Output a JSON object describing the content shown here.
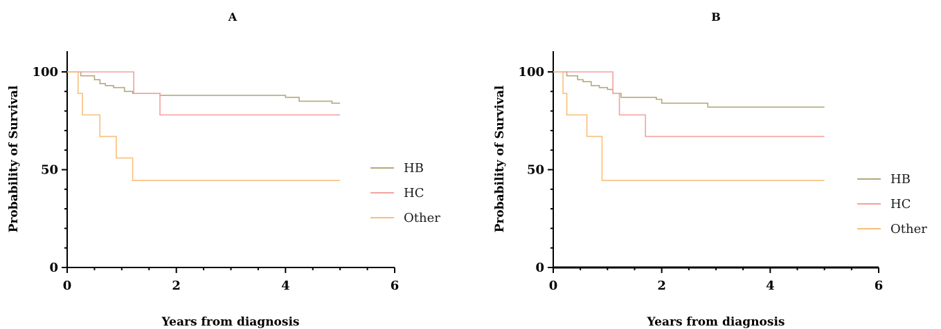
{
  "chart_data": [
    {
      "type": "line",
      "panel_label": "A",
      "xlabel": "Years from diagnosis",
      "ylabel": "Probability of Survival",
      "xlim": [
        0,
        6
      ],
      "ylim": [
        0,
        100
      ],
      "x_ticks": [
        "0",
        "2",
        "4",
        "6"
      ],
      "y_ticks": [
        "0",
        "50",
        "100"
      ],
      "grid": false,
      "legend_position": "right",
      "series": [
        {
          "name": "HB",
          "color": "#b3a97a",
          "step": true,
          "points": [
            [
              0,
              100
            ],
            [
              0.25,
              98
            ],
            [
              0.5,
              96
            ],
            [
              0.6,
              94
            ],
            [
              0.7,
              93
            ],
            [
              0.85,
              92
            ],
            [
              1.05,
              90
            ],
            [
              1.2,
              89
            ],
            [
              1.7,
              88
            ],
            [
              4.0,
              87
            ],
            [
              4.25,
              85
            ],
            [
              4.85,
              84
            ],
            [
              5.0,
              84
            ]
          ]
        },
        {
          "name": "HC",
          "color": "#f4a0a0",
          "step": true,
          "points": [
            [
              0,
              100
            ],
            [
              1.22,
              89
            ],
            [
              1.7,
              78
            ],
            [
              5.0,
              78
            ]
          ]
        },
        {
          "name": "Other",
          "color": "#f8bf7a",
          "step": true,
          "points": [
            [
              0,
              100
            ],
            [
              0.2,
              89
            ],
            [
              0.28,
              78
            ],
            [
              0.6,
              67
            ],
            [
              0.9,
              56
            ],
            [
              1.2,
              44.5
            ],
            [
              5.0,
              44.5
            ]
          ]
        }
      ]
    },
    {
      "type": "line",
      "panel_label": "B",
      "xlabel": "Years from diagnosis",
      "ylabel": "Probability of Survival",
      "xlim": [
        0,
        6
      ],
      "ylim": [
        0,
        100
      ],
      "x_ticks": [
        "0",
        "2",
        "4",
        "6"
      ],
      "y_ticks": [
        "0",
        "50",
        "100"
      ],
      "grid": false,
      "legend_position": "right",
      "series": [
        {
          "name": "HB",
          "color": "#b3a97a",
          "step": true,
          "points": [
            [
              0,
              100
            ],
            [
              0.25,
              98
            ],
            [
              0.45,
              96
            ],
            [
              0.55,
              95
            ],
            [
              0.7,
              93
            ],
            [
              0.85,
              92
            ],
            [
              1.0,
              91
            ],
            [
              1.1,
              89
            ],
            [
              1.25,
              87
            ],
            [
              1.9,
              86
            ],
            [
              2.0,
              84
            ],
            [
              2.85,
              82
            ],
            [
              5.0,
              82
            ]
          ]
        },
        {
          "name": "HC",
          "color": "#f4a0a0",
          "step": true,
          "points": [
            [
              0,
              100
            ],
            [
              1.1,
              89
            ],
            [
              1.22,
              78
            ],
            [
              1.7,
              67
            ],
            [
              5.0,
              67
            ]
          ]
        },
        {
          "name": "Other",
          "color": "#f8bf7a",
          "step": true,
          "points": [
            [
              0,
              100
            ],
            [
              0.18,
              89
            ],
            [
              0.25,
              78
            ],
            [
              0.62,
              67
            ],
            [
              0.9,
              44.5
            ],
            [
              5.0,
              44.5
            ]
          ]
        }
      ]
    }
  ]
}
